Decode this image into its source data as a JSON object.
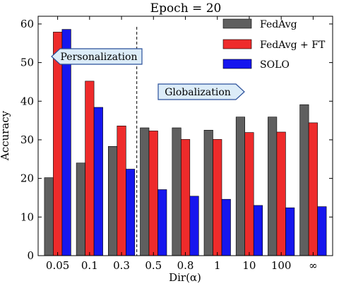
{
  "chart_data": {
    "type": "bar",
    "title": "Epoch = 20",
    "xlabel": "Dir(α)",
    "ylabel": "Accuracy",
    "ylim": [
      0,
      62
    ],
    "yticks": [
      0,
      10,
      20,
      30,
      40,
      50,
      60
    ],
    "categories": [
      "0.05",
      "0.1",
      "0.3",
      "0.5",
      "0.8",
      "1",
      "10",
      "100",
      "∞"
    ],
    "series": [
      {
        "name": "FedAvg",
        "color": "#5f5f5f",
        "values": [
          20.2,
          24.0,
          28.3,
          33.1,
          33.1,
          32.5,
          35.9,
          35.9,
          39.1
        ]
      },
      {
        "name": "FedAvg + FT",
        "color": "#ee2b2b",
        "values": [
          57.9,
          45.2,
          33.6,
          32.3,
          30.1,
          30.1,
          31.9,
          32.0,
          34.4
        ]
      },
      {
        "name": "SOLO",
        "color": "#1616ee",
        "values": [
          58.6,
          38.4,
          22.4,
          17.1,
          15.4,
          14.6,
          13.0,
          12.4,
          12.7
        ]
      }
    ],
    "legend_position": "top-right",
    "grid": false,
    "annotations": [
      {
        "text": "Personalization",
        "direction": "left"
      },
      {
        "text": "Globalization",
        "direction": "right"
      }
    ],
    "divider_between": [
      "0.3",
      "0.5"
    ]
  }
}
